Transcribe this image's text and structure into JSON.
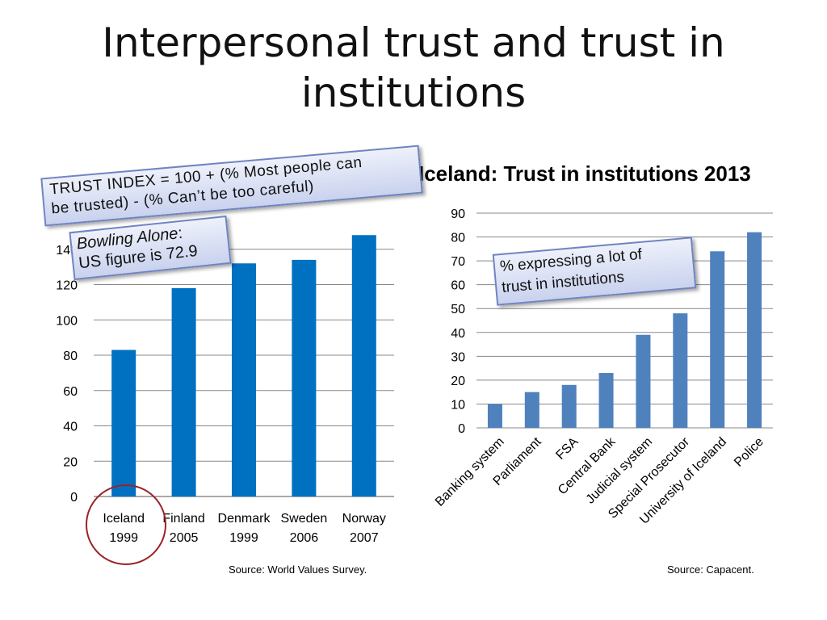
{
  "title_line1": "Interpersonal trust and trust in",
  "title_line2": "institutions",
  "callouts": {
    "formula_line1": "TRUST INDEX = 100 + (% Most people can",
    "formula_line2": "be trusted) - (% Can’t be too careful)",
    "bowling_title": "Bowling Alone",
    "bowling_colon": ":",
    "bowling_line2": "US figure is 72.9",
    "express_line1": "% expressing a lot of",
    "express_line2": "trust in institutions"
  },
  "sources": {
    "left": "Source: World Values Survey.",
    "right": "Source: Capacent."
  },
  "colors": {
    "bar1": "#0070c0",
    "bar2": "#4f81bd",
    "grid": "#888888",
    "circle": "#9b2226"
  },
  "chart_data": [
    {
      "type": "bar",
      "title": "",
      "categories": [
        "Iceland 1999",
        "Finland 2005",
        "Denmark 1999",
        "Sweden 2006",
        "Norway 2007"
      ],
      "category_lines": [
        [
          "Iceland",
          "1999"
        ],
        [
          "Finland",
          "2005"
        ],
        [
          "Denmark",
          "1999"
        ],
        [
          "Sweden",
          "2006"
        ],
        [
          "Norway",
          "2007"
        ]
      ],
      "values": [
        83,
        118,
        132,
        134,
        148
      ],
      "yticks": [
        0,
        20,
        40,
        60,
        80,
        100,
        120,
        140
      ],
      "ylim": [
        0,
        160
      ],
      "grid": true,
      "highlighted_category": "Iceland 1999"
    },
    {
      "type": "bar",
      "title": "Iceland: Trust in institutions 2013",
      "categories": [
        "Banking system",
        "Parliament",
        "FSA",
        "Central Bank",
        "Judicial system",
        "Special Prosecutor",
        "University of Iceland",
        "Police"
      ],
      "values": [
        10,
        15,
        18,
        23,
        39,
        48,
        74,
        82
      ],
      "yticks": [
        0,
        10,
        20,
        30,
        40,
        50,
        60,
        70,
        80,
        90
      ],
      "ylim": [
        0,
        90
      ],
      "grid": true
    }
  ]
}
